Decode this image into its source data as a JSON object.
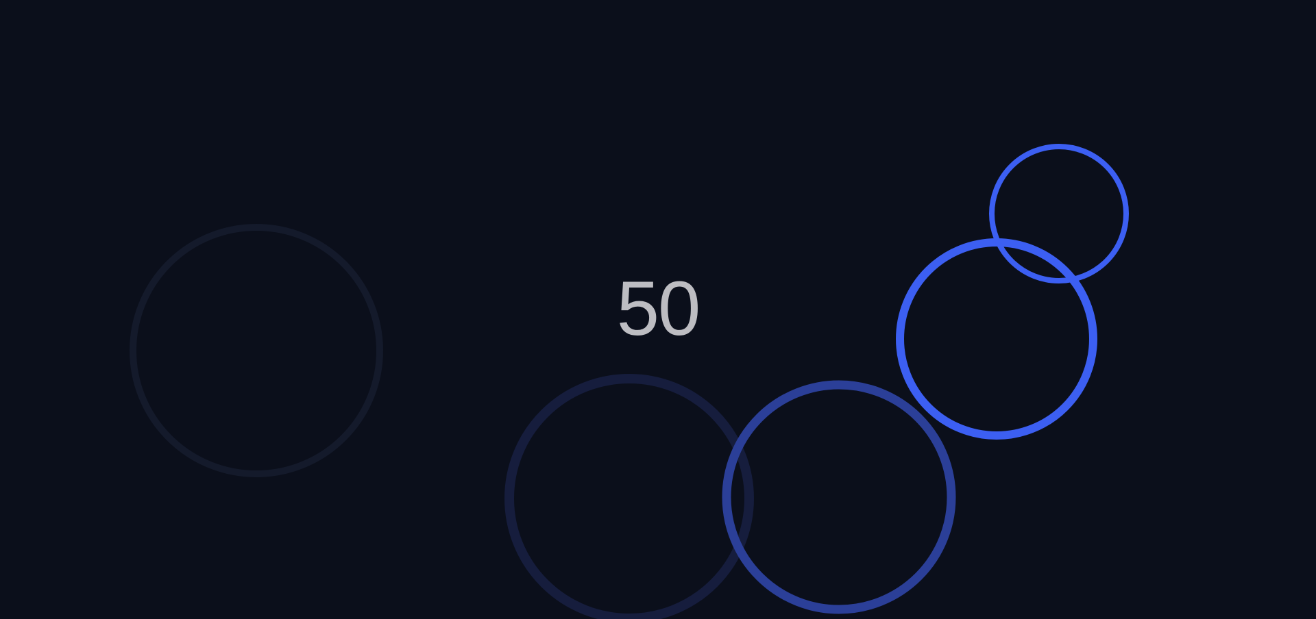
{
  "score": {
    "value": "50"
  },
  "rings": [
    {
      "id": "ring-faint-left",
      "color": "#141a2b"
    },
    {
      "id": "ring-dim-center",
      "color": "#161d3d"
    },
    {
      "id": "ring-mid-center",
      "color": "#2b3f98"
    },
    {
      "id": "ring-bright-right",
      "color": "#3c5ff2"
    },
    {
      "id": "ring-bright-small",
      "color": "#3c5ff2"
    }
  ],
  "colors": {
    "background": "#0b0f1b",
    "score_text": "#bdbdc2"
  }
}
